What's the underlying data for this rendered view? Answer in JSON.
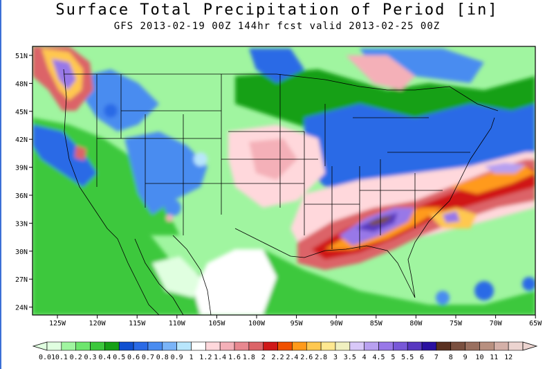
{
  "title": "Surface Total Precipitation of Period [in]",
  "subtitle": "GFS 2013-02-19 00Z 144hr fcst valid 2013-02-25 00Z",
  "map": {
    "lat_ticks": [
      "51N",
      "48N",
      "45N",
      "42N",
      "39N",
      "36N",
      "33N",
      "30N",
      "27N",
      "24N"
    ],
    "lon_ticks": [
      "125W",
      "120W",
      "115W",
      "110W",
      "105W",
      "100W",
      "95W",
      "90W",
      "85W",
      "80W",
      "75W",
      "70W",
      "65W"
    ],
    "lat_range": [
      22.5,
      52.5
    ],
    "lon_range": [
      -128.5,
      -65
    ]
  },
  "colorbar": {
    "labels": [
      "0.01",
      "0.1",
      "0.2",
      "0.3",
      "0.4",
      "0.5",
      "0.6",
      "0.7",
      "0.8",
      "0.9",
      "1",
      "1.2",
      "1.4",
      "1.6",
      "1.8",
      "2",
      "2.2",
      "2.4",
      "2.6",
      "2.8",
      "3",
      "3.5",
      "4",
      "4.5",
      "5",
      "5.5",
      "6",
      "7",
      "8",
      "9",
      "10",
      "11",
      "12"
    ],
    "colors": [
      "#e0ffe0",
      "#a0f5a0",
      "#6ee66e",
      "#3cc83c",
      "#16a016",
      "#1050d0",
      "#2a6ae6",
      "#4a8cf0",
      "#7ab4f8",
      "#b8e6fc",
      "#ffffff",
      "#ffd8dc",
      "#f4b0b8",
      "#e88890",
      "#dc6468",
      "#d01818",
      "#f05000",
      "#ff9a1a",
      "#ffc850",
      "#ffe890",
      "#f0f0c0",
      "#d8c8f8",
      "#b8a0f0",
      "#9878e8",
      "#7858d8",
      "#5838c0",
      "#2a10a0",
      "#5a3020",
      "#7a5040",
      "#9a7060",
      "#b89080",
      "#d4b0a8",
      "#ecd4d0"
    ]
  }
}
